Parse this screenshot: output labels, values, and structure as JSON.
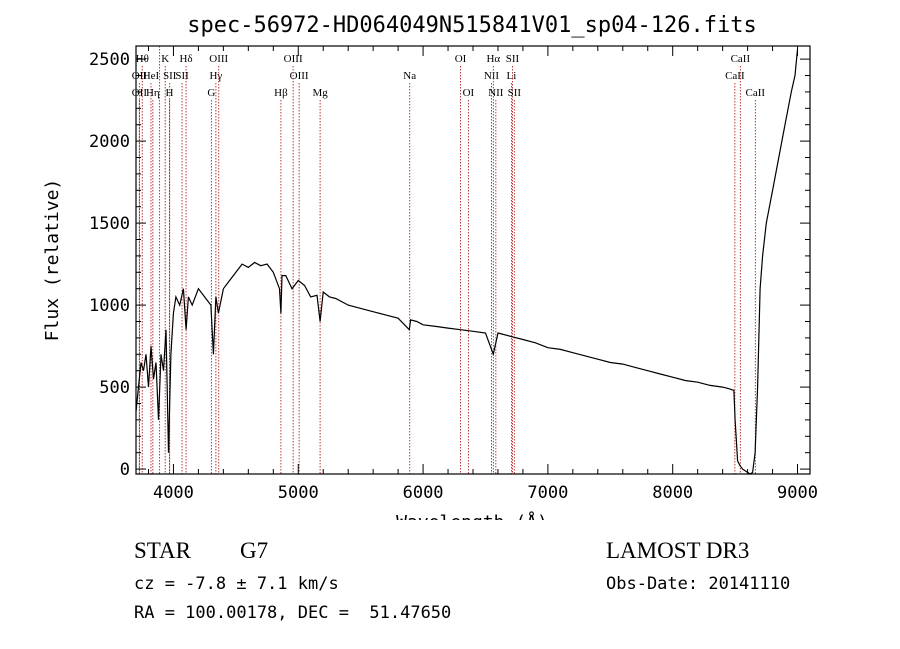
{
  "chart_data": {
    "type": "line",
    "title": "spec-56972-HD064049N515841V01_sp04-126.fits",
    "xlabel": "Wavelength (Å)",
    "ylabel": "Flux (relative)",
    "xlim": [
      3700,
      9100
    ],
    "ylim": [
      -30,
      2580
    ],
    "xticks": [
      4000,
      5000,
      6000,
      7000,
      8000,
      9000
    ],
    "yticks": [
      0,
      500,
      1000,
      1500,
      2000,
      2500
    ],
    "xtick_labels": [
      "4000",
      "5000",
      "6000",
      "7000",
      "8000",
      "9000"
    ],
    "ytick_labels": [
      "0",
      "500",
      "1000",
      "1500",
      "2000",
      "2500"
    ],
    "series": [
      {
        "name": "flux",
        "x": [
          3700,
          3720,
          3740,
          3760,
          3780,
          3800,
          3820,
          3840,
          3860,
          3880,
          3900,
          3920,
          3940,
          3960,
          3970,
          3980,
          4000,
          4020,
          4050,
          4080,
          4101,
          4120,
          4150,
          4200,
          4250,
          4300,
          4320,
          4340,
          4360,
          4400,
          4450,
          4500,
          4550,
          4600,
          4650,
          4700,
          4750,
          4800,
          4850,
          4861,
          4870,
          4900,
          4950,
          5000,
          5050,
          5100,
          5150,
          5175,
          5200,
          5250,
          5300,
          5400,
          5500,
          5600,
          5700,
          5800,
          5890,
          5900,
          5950,
          6000,
          6100,
          6200,
          6300,
          6400,
          6500,
          6563,
          6600,
          6700,
          6800,
          6900,
          7000,
          7100,
          7200,
          7300,
          7400,
          7500,
          7600,
          7700,
          7800,
          7900,
          8000,
          8100,
          8200,
          8300,
          8400,
          8450,
          8490,
          8500,
          8520,
          8540,
          8560,
          8600,
          8620,
          8640,
          8660,
          8680,
          8700,
          8720,
          8750,
          8800,
          8850,
          8900,
          8950,
          8980,
          9000
        ],
        "y": [
          350,
          500,
          650,
          600,
          700,
          500,
          750,
          550,
          650,
          300,
          700,
          600,
          850,
          100,
          400,
          700,
          950,
          1050,
          1000,
          1100,
          850,
          1050,
          1000,
          1100,
          1050,
          1000,
          700,
          1050,
          950,
          1100,
          1150,
          1200,
          1250,
          1230,
          1260,
          1240,
          1250,
          1200,
          1100,
          950,
          1180,
          1180,
          1100,
          1150,
          1120,
          1050,
          1060,
          900,
          1080,
          1050,
          1040,
          1000,
          980,
          960,
          940,
          920,
          850,
          910,
          900,
          880,
          870,
          860,
          850,
          840,
          830,
          700,
          830,
          810,
          790,
          770,
          740,
          730,
          710,
          690,
          670,
          650,
          640,
          620,
          600,
          580,
          560,
          540,
          530,
          510,
          500,
          490,
          480,
          300,
          50,
          20,
          0,
          -20,
          -30,
          -20,
          100,
          500,
          1100,
          1300,
          1500,
          1700,
          1900,
          2100,
          2300,
          2400,
          2560
        ]
      }
    ],
    "lines": [
      {
        "x": 3750,
        "label": "Hθ",
        "row": 1
      },
      {
        "x": 3727,
        "label": "OII",
        "row": 2
      },
      {
        "x": 3727,
        "label": "OII",
        "row": 3
      },
      {
        "x": 3820,
        "label": "HeI",
        "row": 2
      },
      {
        "x": 3835,
        "label": "Hη",
        "row": 3
      },
      {
        "x": 3889,
        "label": "",
        "row": 0
      },
      {
        "x": 3934,
        "label": "K",
        "row": 1
      },
      {
        "x": 3968,
        "label": "H",
        "row": 3
      },
      {
        "x": 3970,
        "label": "SII",
        "row": 2
      },
      {
        "x": 4101,
        "label": "Hδ",
        "row": 1
      },
      {
        "x": 4069,
        "label": "SII",
        "row": 2
      },
      {
        "x": 4304,
        "label": "G",
        "row": 3
      },
      {
        "x": 4340,
        "label": "Hγ",
        "row": 2
      },
      {
        "x": 4363,
        "label": "OIII",
        "row": 1
      },
      {
        "x": 4861,
        "label": "Hβ",
        "row": 3
      },
      {
        "x": 4959,
        "label": "OIII",
        "row": 1
      },
      {
        "x": 5007,
        "label": "OIII",
        "row": 2
      },
      {
        "x": 5175,
        "label": "Mg",
        "row": 3
      },
      {
        "x": 5893,
        "label": "Na",
        "row": 2
      },
      {
        "x": 6300,
        "label": "OI",
        "row": 1
      },
      {
        "x": 6363,
        "label": "OI",
        "row": 3
      },
      {
        "x": 6548,
        "label": "NII",
        "row": 2
      },
      {
        "x": 6563,
        "label": "Hα",
        "row": 1
      },
      {
        "x": 6583,
        "label": "NII",
        "row": 3
      },
      {
        "x": 6708,
        "label": "Li",
        "row": 2
      },
      {
        "x": 6716,
        "label": "SII",
        "row": 1
      },
      {
        "x": 6731,
        "label": "SII",
        "row": 3
      },
      {
        "x": 8498,
        "label": "CaII",
        "row": 2
      },
      {
        "x": 8542,
        "label": "CaII",
        "row": 1
      },
      {
        "x": 8662,
        "label": "CaII",
        "row": 3
      }
    ],
    "grid": false,
    "legend": "none"
  },
  "info": {
    "object_class": "STAR",
    "subclass": "G7",
    "redshift": "cz = -7.8 ± 7.1 km/s",
    "coords": "RA = 100.00178, DEC =  51.47650",
    "survey": "LAMOST DR3",
    "obs_date": "Obs-Date: 20141110"
  },
  "colors": {
    "line_marker": "#b22222",
    "spectrum": "#000000",
    "axis": "#000000"
  }
}
